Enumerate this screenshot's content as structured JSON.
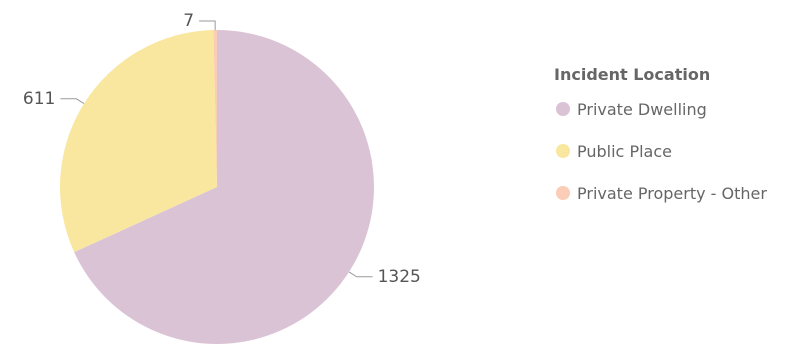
{
  "chart_data": {
    "type": "pie",
    "legend_title": "Incident Location",
    "legend_position": "right",
    "series": [
      {
        "name": "Private Dwelling",
        "value": 1325,
        "color": "#dbc3d6"
      },
      {
        "name": "Public Place",
        "value": 611,
        "color": "#fae79f"
      },
      {
        "name": "Private Property - Other",
        "value": 7,
        "color": "#fbccb6"
      }
    ]
  }
}
